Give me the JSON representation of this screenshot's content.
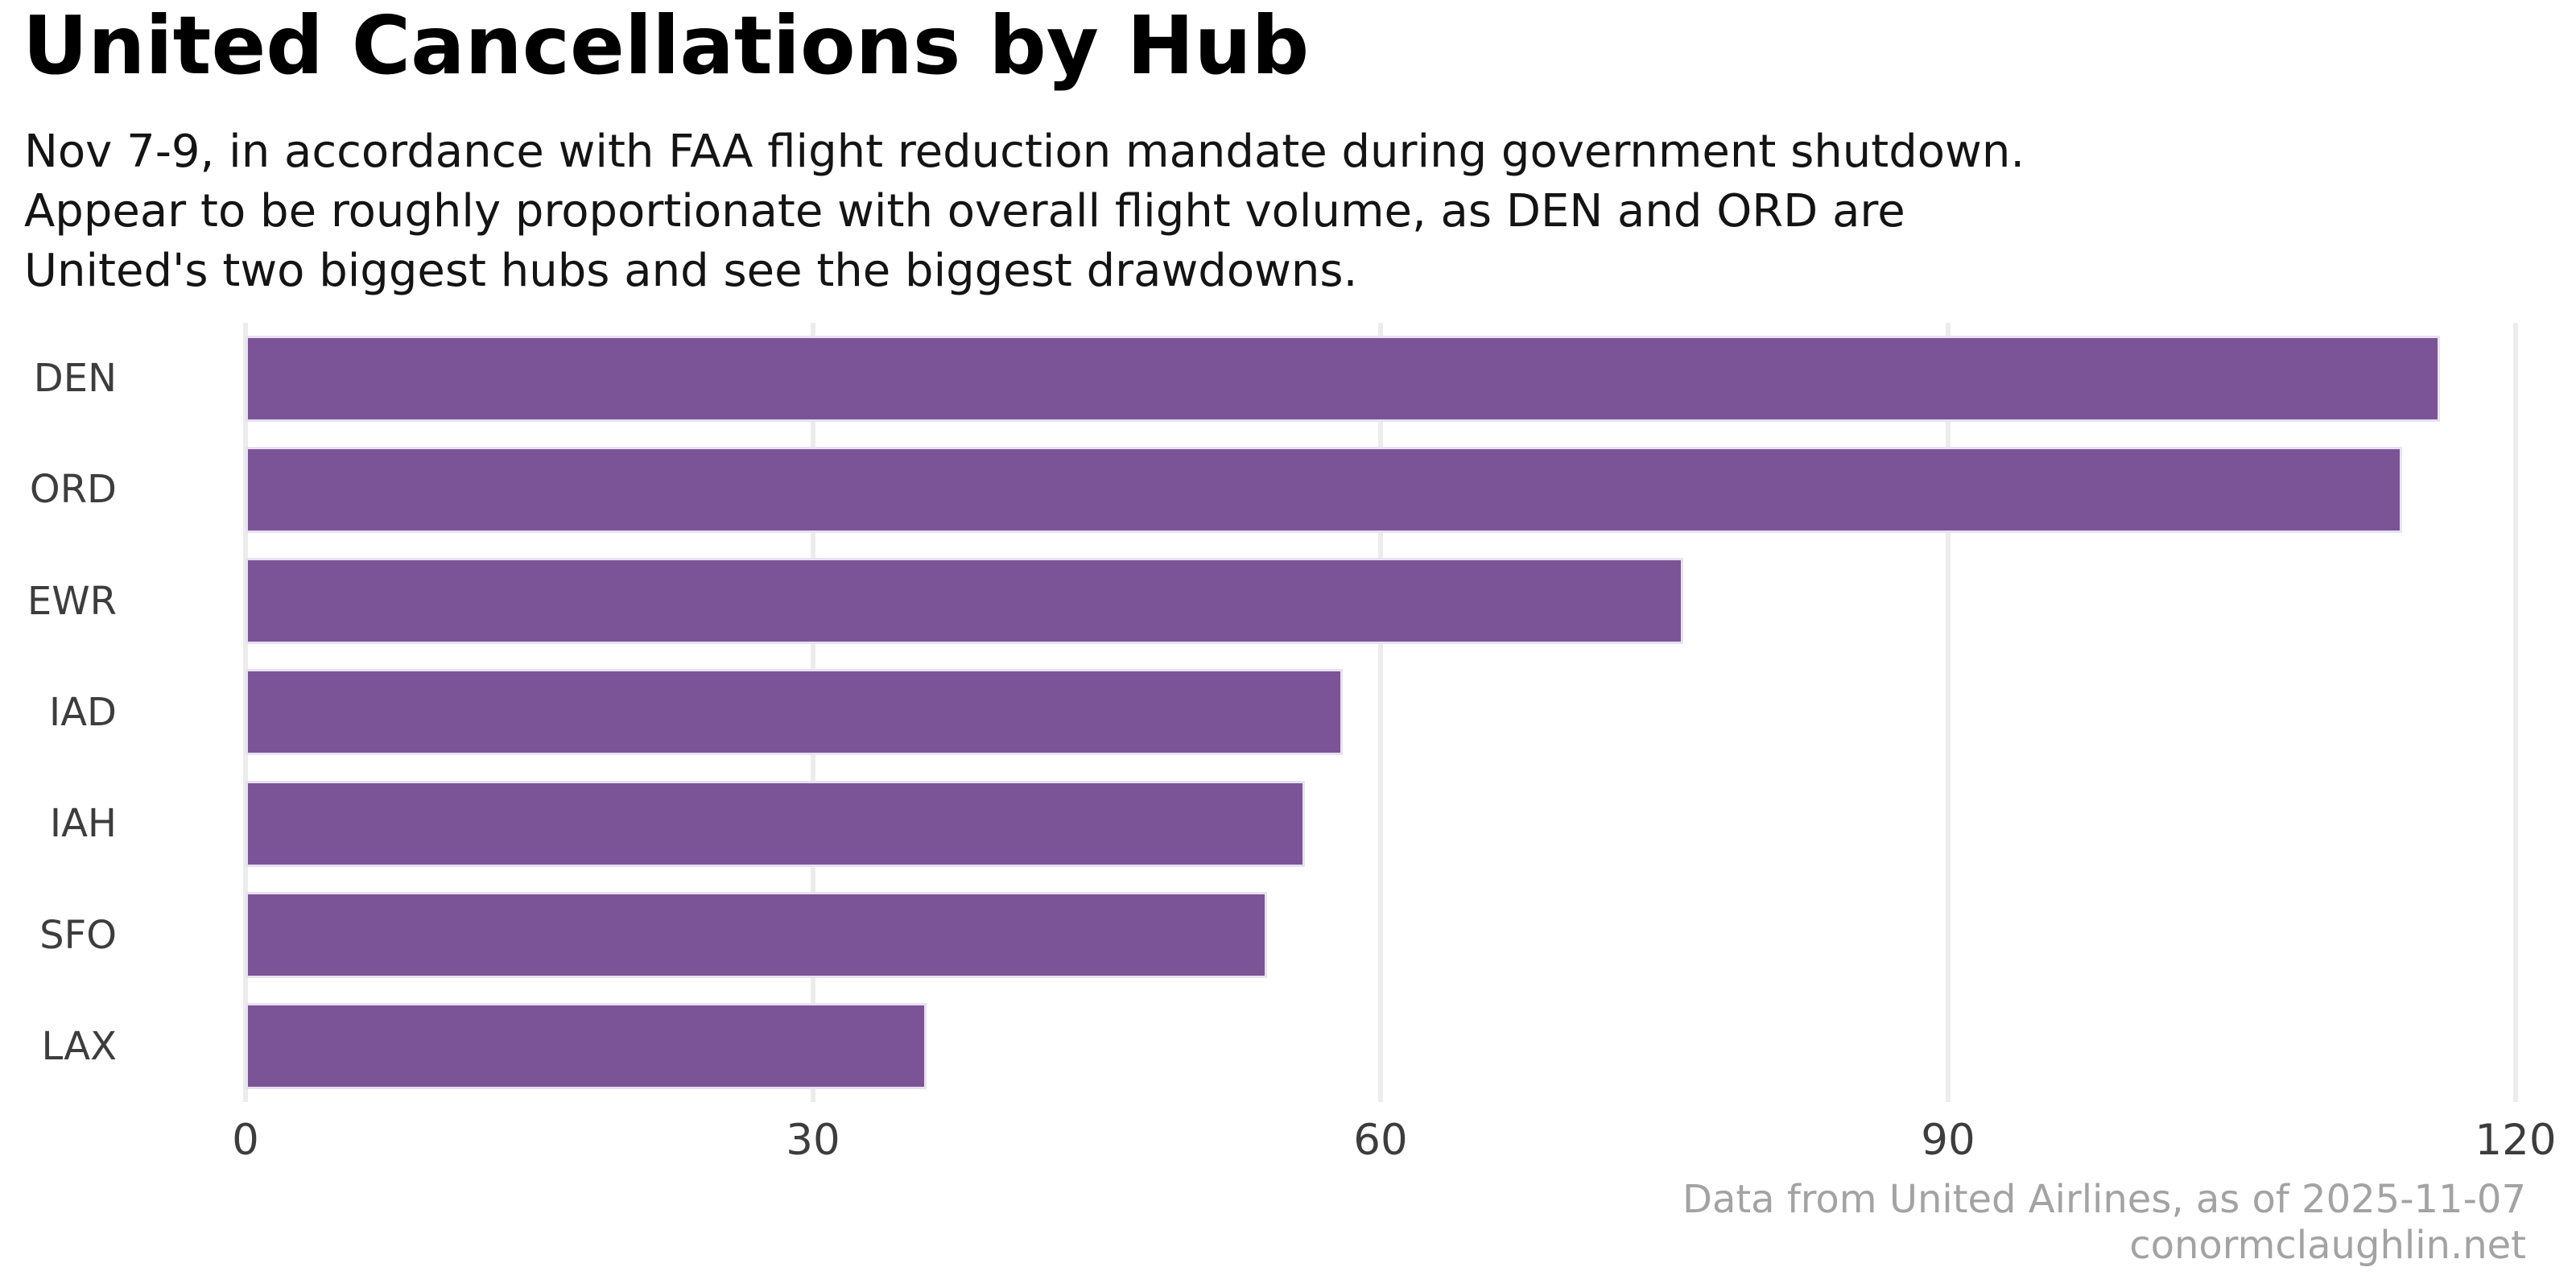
{
  "title": "United Cancellations by Hub",
  "subtitle_lines": [
    "Nov 7-9, in accordance with FAA flight reduction mandate during government shutdown.",
    "Appear to be roughly proportionate with overall flight volume, as DEN and ORD are",
    "United's two biggest hubs and see the biggest drawdowns."
  ],
  "footer": {
    "source": "Data from United Airlines, as of 2025-11-07",
    "site": "conormclaughlin.net"
  },
  "colors": {
    "bar": "#7b5498",
    "bar_edge": "#e9e1f1",
    "gridline": "#ececec",
    "axis_text": "#3d3d3d",
    "title_text": "#000000",
    "subtitle_text": "#141414",
    "footer_text": "#a3a3a3",
    "background": "#ffffff"
  },
  "chart_data": {
    "type": "bar",
    "orientation": "horizontal",
    "title": "United Cancellations by Hub",
    "categories": [
      "DEN",
      "ORD",
      "EWR",
      "IAD",
      "IAH",
      "SFO",
      "LAX"
    ],
    "values": [
      116,
      114,
      76,
      58,
      56,
      54,
      36
    ],
    "xlabel": "",
    "ylabel": "",
    "xlim": [
      0,
      120
    ],
    "xticks": [
      0,
      30,
      60,
      90,
      120
    ],
    "grid": true,
    "legend": false
  }
}
